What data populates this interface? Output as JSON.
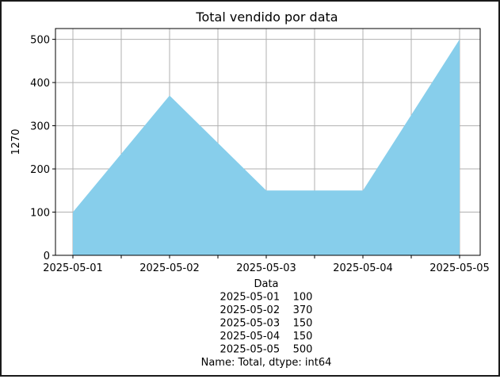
{
  "chart_data": {
    "type": "area",
    "title": "Total vendido por data",
    "ylabel": "1270",
    "xlabel_lines": [
      "Data",
      "2025-05-01    100",
      "2025-05-02    370",
      "2025-05-03    150",
      "2025-05-04    150",
      "2025-05-05    500",
      "Name: Total, dtype: int64"
    ],
    "x": [
      "2025-05-01",
      "2025-05-02",
      "2025-05-03",
      "2025-05-04",
      "2025-05-05"
    ],
    "x_tick_labels": [
      "2025-05-01",
      "2025-05-02",
      "2025-05-03",
      "2025-05-04",
      "2025-05-05"
    ],
    "values": [
      100,
      370,
      150,
      150,
      500
    ],
    "y_ticks": [
      0,
      100,
      200,
      300,
      400,
      500
    ],
    "ylim": [
      0,
      525
    ],
    "grid": true,
    "fill_color": "#87ceeb"
  }
}
